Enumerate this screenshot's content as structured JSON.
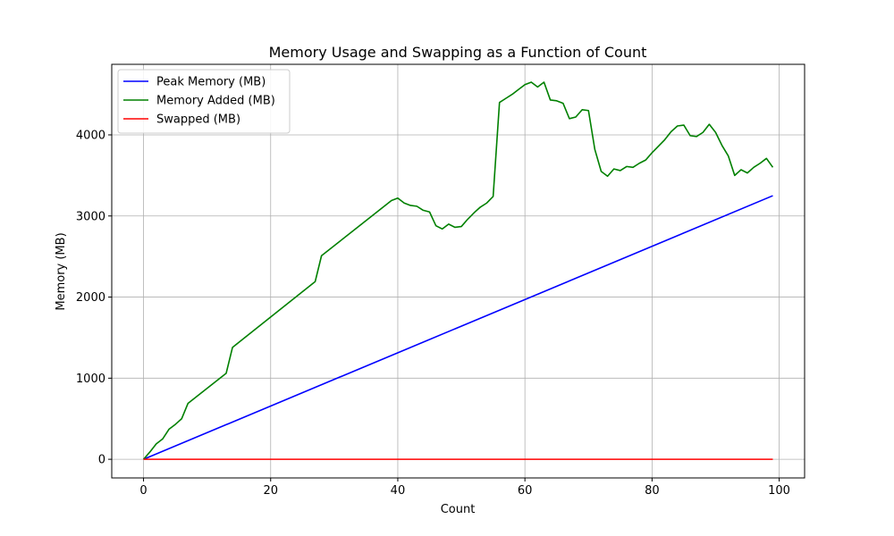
{
  "chart_data": {
    "type": "line",
    "title": "Memory Usage and Swapping as a Function of Count",
    "xlabel": "Count",
    "ylabel": "Memory (MB)",
    "xlim": [
      -5,
      104
    ],
    "ylim": [
      -230,
      4870
    ],
    "xticks": [
      0,
      20,
      40,
      60,
      80,
      100
    ],
    "yticks": [
      0,
      1000,
      2000,
      3000,
      4000
    ],
    "grid": true,
    "legend_position": "upper-left",
    "series": [
      {
        "name": "Peak Memory (MB)",
        "color": "#0000ff",
        "points": [
          [
            0,
            0
          ],
          [
            99,
            3250
          ]
        ]
      },
      {
        "name": "Memory Added (MB)",
        "color": "#008000",
        "points": [
          [
            0,
            0
          ],
          [
            1,
            90
          ],
          [
            2,
            190
          ],
          [
            3,
            250
          ],
          [
            4,
            370
          ],
          [
            5,
            430
          ],
          [
            6,
            500
          ],
          [
            7,
            690
          ],
          [
            13,
            1060
          ],
          [
            14,
            1380
          ],
          [
            27,
            2190
          ],
          [
            28,
            2510
          ],
          [
            39,
            3190
          ],
          [
            40,
            3220
          ],
          [
            41,
            3160
          ],
          [
            42,
            3130
          ],
          [
            43,
            3120
          ],
          [
            44,
            3070
          ],
          [
            45,
            3050
          ],
          [
            46,
            2880
          ],
          [
            47,
            2840
          ],
          [
            48,
            2900
          ],
          [
            49,
            2860
          ],
          [
            50,
            2870
          ],
          [
            51,
            2960
          ],
          [
            52,
            3040
          ],
          [
            53,
            3110
          ],
          [
            54,
            3160
          ],
          [
            55,
            3240
          ],
          [
            56,
            4400
          ],
          [
            57,
            4450
          ],
          [
            58,
            4500
          ],
          [
            59,
            4560
          ],
          [
            60,
            4620
          ],
          [
            61,
            4650
          ],
          [
            62,
            4590
          ],
          [
            63,
            4650
          ],
          [
            64,
            4430
          ],
          [
            65,
            4420
          ],
          [
            66,
            4390
          ],
          [
            67,
            4200
          ],
          [
            68,
            4220
          ],
          [
            69,
            4310
          ],
          [
            70,
            4300
          ],
          [
            71,
            3820
          ],
          [
            72,
            3550
          ],
          [
            73,
            3490
          ],
          [
            74,
            3580
          ],
          [
            75,
            3560
          ],
          [
            76,
            3610
          ],
          [
            77,
            3600
          ],
          [
            78,
            3650
          ],
          [
            79,
            3690
          ],
          [
            80,
            3780
          ],
          [
            81,
            3860
          ],
          [
            82,
            3940
          ],
          [
            83,
            4040
          ],
          [
            84,
            4110
          ],
          [
            85,
            4120
          ],
          [
            86,
            3990
          ],
          [
            87,
            3980
          ],
          [
            88,
            4030
          ],
          [
            89,
            4130
          ],
          [
            90,
            4030
          ],
          [
            91,
            3870
          ],
          [
            92,
            3740
          ],
          [
            93,
            3500
          ],
          [
            94,
            3570
          ],
          [
            95,
            3530
          ],
          [
            96,
            3600
          ],
          [
            97,
            3650
          ],
          [
            98,
            3710
          ],
          [
            99,
            3600
          ]
        ]
      },
      {
        "name": "Swapped (MB)",
        "color": "#ff0000",
        "points": [
          [
            0,
            0
          ],
          [
            99,
            0
          ]
        ]
      }
    ]
  }
}
